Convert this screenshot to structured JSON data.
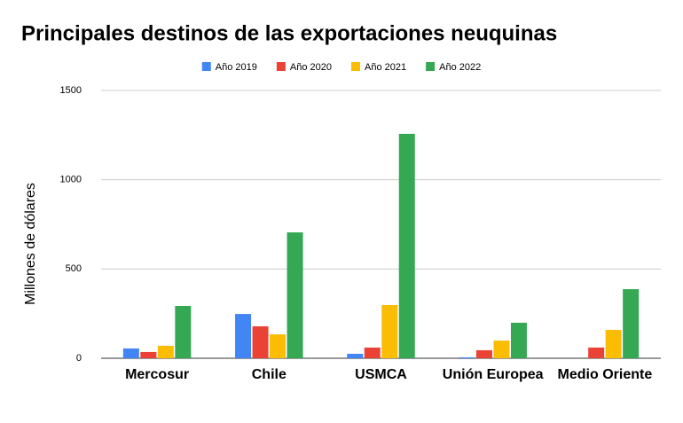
{
  "chart_data": {
    "type": "bar",
    "title": "Principales destinos de las exportaciones neuquinas",
    "y_label": "Millones de dólares",
    "categories": [
      "Mercosur",
      "Chile",
      "USMCA",
      "Unión Europea",
      "Medio Oriente"
    ],
    "series": [
      {
        "name": "Año 2019",
        "color": "#4285f4",
        "values": [
          55,
          248,
          25,
          5,
          0
        ]
      },
      {
        "name": "Año 2020",
        "color": "#ea4335",
        "values": [
          35,
          179,
          60,
          45,
          60
        ]
      },
      {
        "name": "Año 2021",
        "color": "#fbbc04",
        "values": [
          70,
          134,
          298,
          99,
          159
        ]
      },
      {
        "name": "Año 2022",
        "color": "#34a853",
        "values": [
          293,
          705,
          1257,
          199,
          387
        ]
      }
    ],
    "ylim": [
      0,
      1500
    ],
    "yticks": [
      0,
      500,
      1000,
      1500
    ],
    "grid": true,
    "legend": "top"
  }
}
